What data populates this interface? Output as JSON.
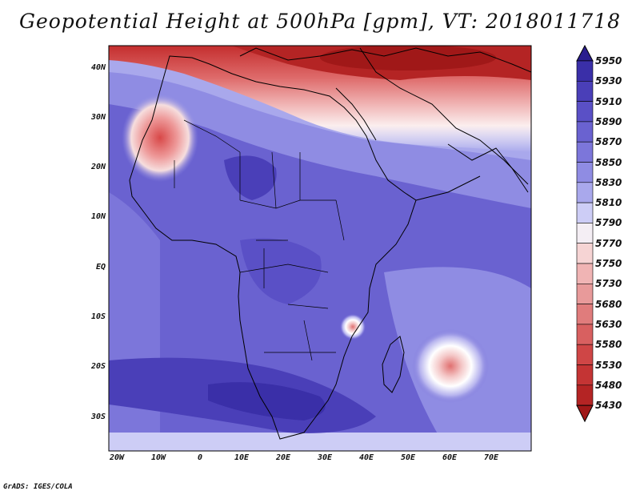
{
  "title": "Geopotential Height at 500hPa [gpm], VT: 2018011718",
  "credit": "GrADS: IGES/COLA",
  "lat_labels": [
    "40N",
    "30N",
    "20N",
    "10N",
    "EQ",
    "10S",
    "20S",
    "30S"
  ],
  "lon_labels": [
    "20W",
    "10W",
    "0",
    "10E",
    "20E",
    "30E",
    "40E",
    "50E",
    "60E",
    "70E"
  ],
  "colorbar": {
    "levels": [
      "5950",
      "5930",
      "5910",
      "5890",
      "5870",
      "5850",
      "5830",
      "5810",
      "5790",
      "5770",
      "5750",
      "5730",
      "5680",
      "5630",
      "5580",
      "5530",
      "5480",
      "5430"
    ],
    "colors": [
      "#2a1d8e",
      "#3a2fa8",
      "#4a3fb8",
      "#5a50c6",
      "#6a62d0",
      "#7c76da",
      "#8f8ce3",
      "#a9a8ec",
      "#cdcdf6",
      "#f4eef4",
      "#f6d4d4",
      "#f0b4b4",
      "#e89a9a",
      "#e07c7c",
      "#d86060",
      "#cf4646",
      "#c43434",
      "#b42424",
      "#a01818"
    ]
  }
}
